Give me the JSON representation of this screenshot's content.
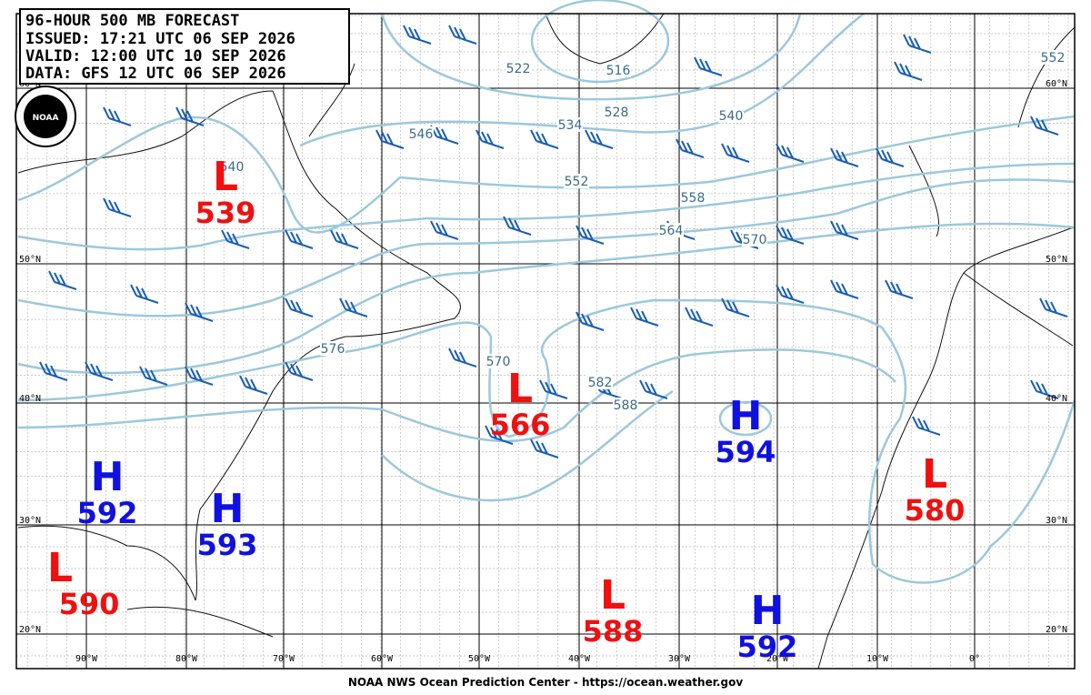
{
  "header": {
    "lines": [
      "96-HOUR 500 MB FORECAST",
      "ISSUED: 17:21 UTC 06 SEP 2026",
      "VALID:  12:00 UTC 10 SEP 2026",
      "DATA:  GFS 12 UTC 06 SEP 2026"
    ]
  },
  "logo": "NOAA",
  "latitudes": [
    "60°N",
    "50°N",
    "40°N",
    "30°N",
    "20°N"
  ],
  "longitudes": [
    "90°W",
    "80°W",
    "70°W",
    "60°W",
    "50°W",
    "40°W",
    "30°W",
    "20°W",
    "10°W",
    "0°"
  ],
  "contour_labels": [
    "516",
    "522",
    "528",
    "534",
    "540",
    "546",
    "552",
    "558",
    "564",
    "570",
    "576",
    "540",
    "570",
    "582",
    "588",
    "552"
  ],
  "centers": [
    {
      "symbol": "L",
      "value": 539
    },
    {
      "symbol": "H",
      "value": 592
    },
    {
      "symbol": "H",
      "value": 593
    },
    {
      "symbol": "L",
      "value": 590
    },
    {
      "symbol": "L",
      "value": 566
    },
    {
      "symbol": "H",
      "value": 594
    },
    {
      "symbol": "L",
      "value": 580
    },
    {
      "symbol": "L",
      "value": 588
    },
    {
      "symbol": "H",
      "value": 592
    }
  ],
  "footer": "NOAA NWS Ocean Prediction Center - https://ocean.weather.gov"
}
